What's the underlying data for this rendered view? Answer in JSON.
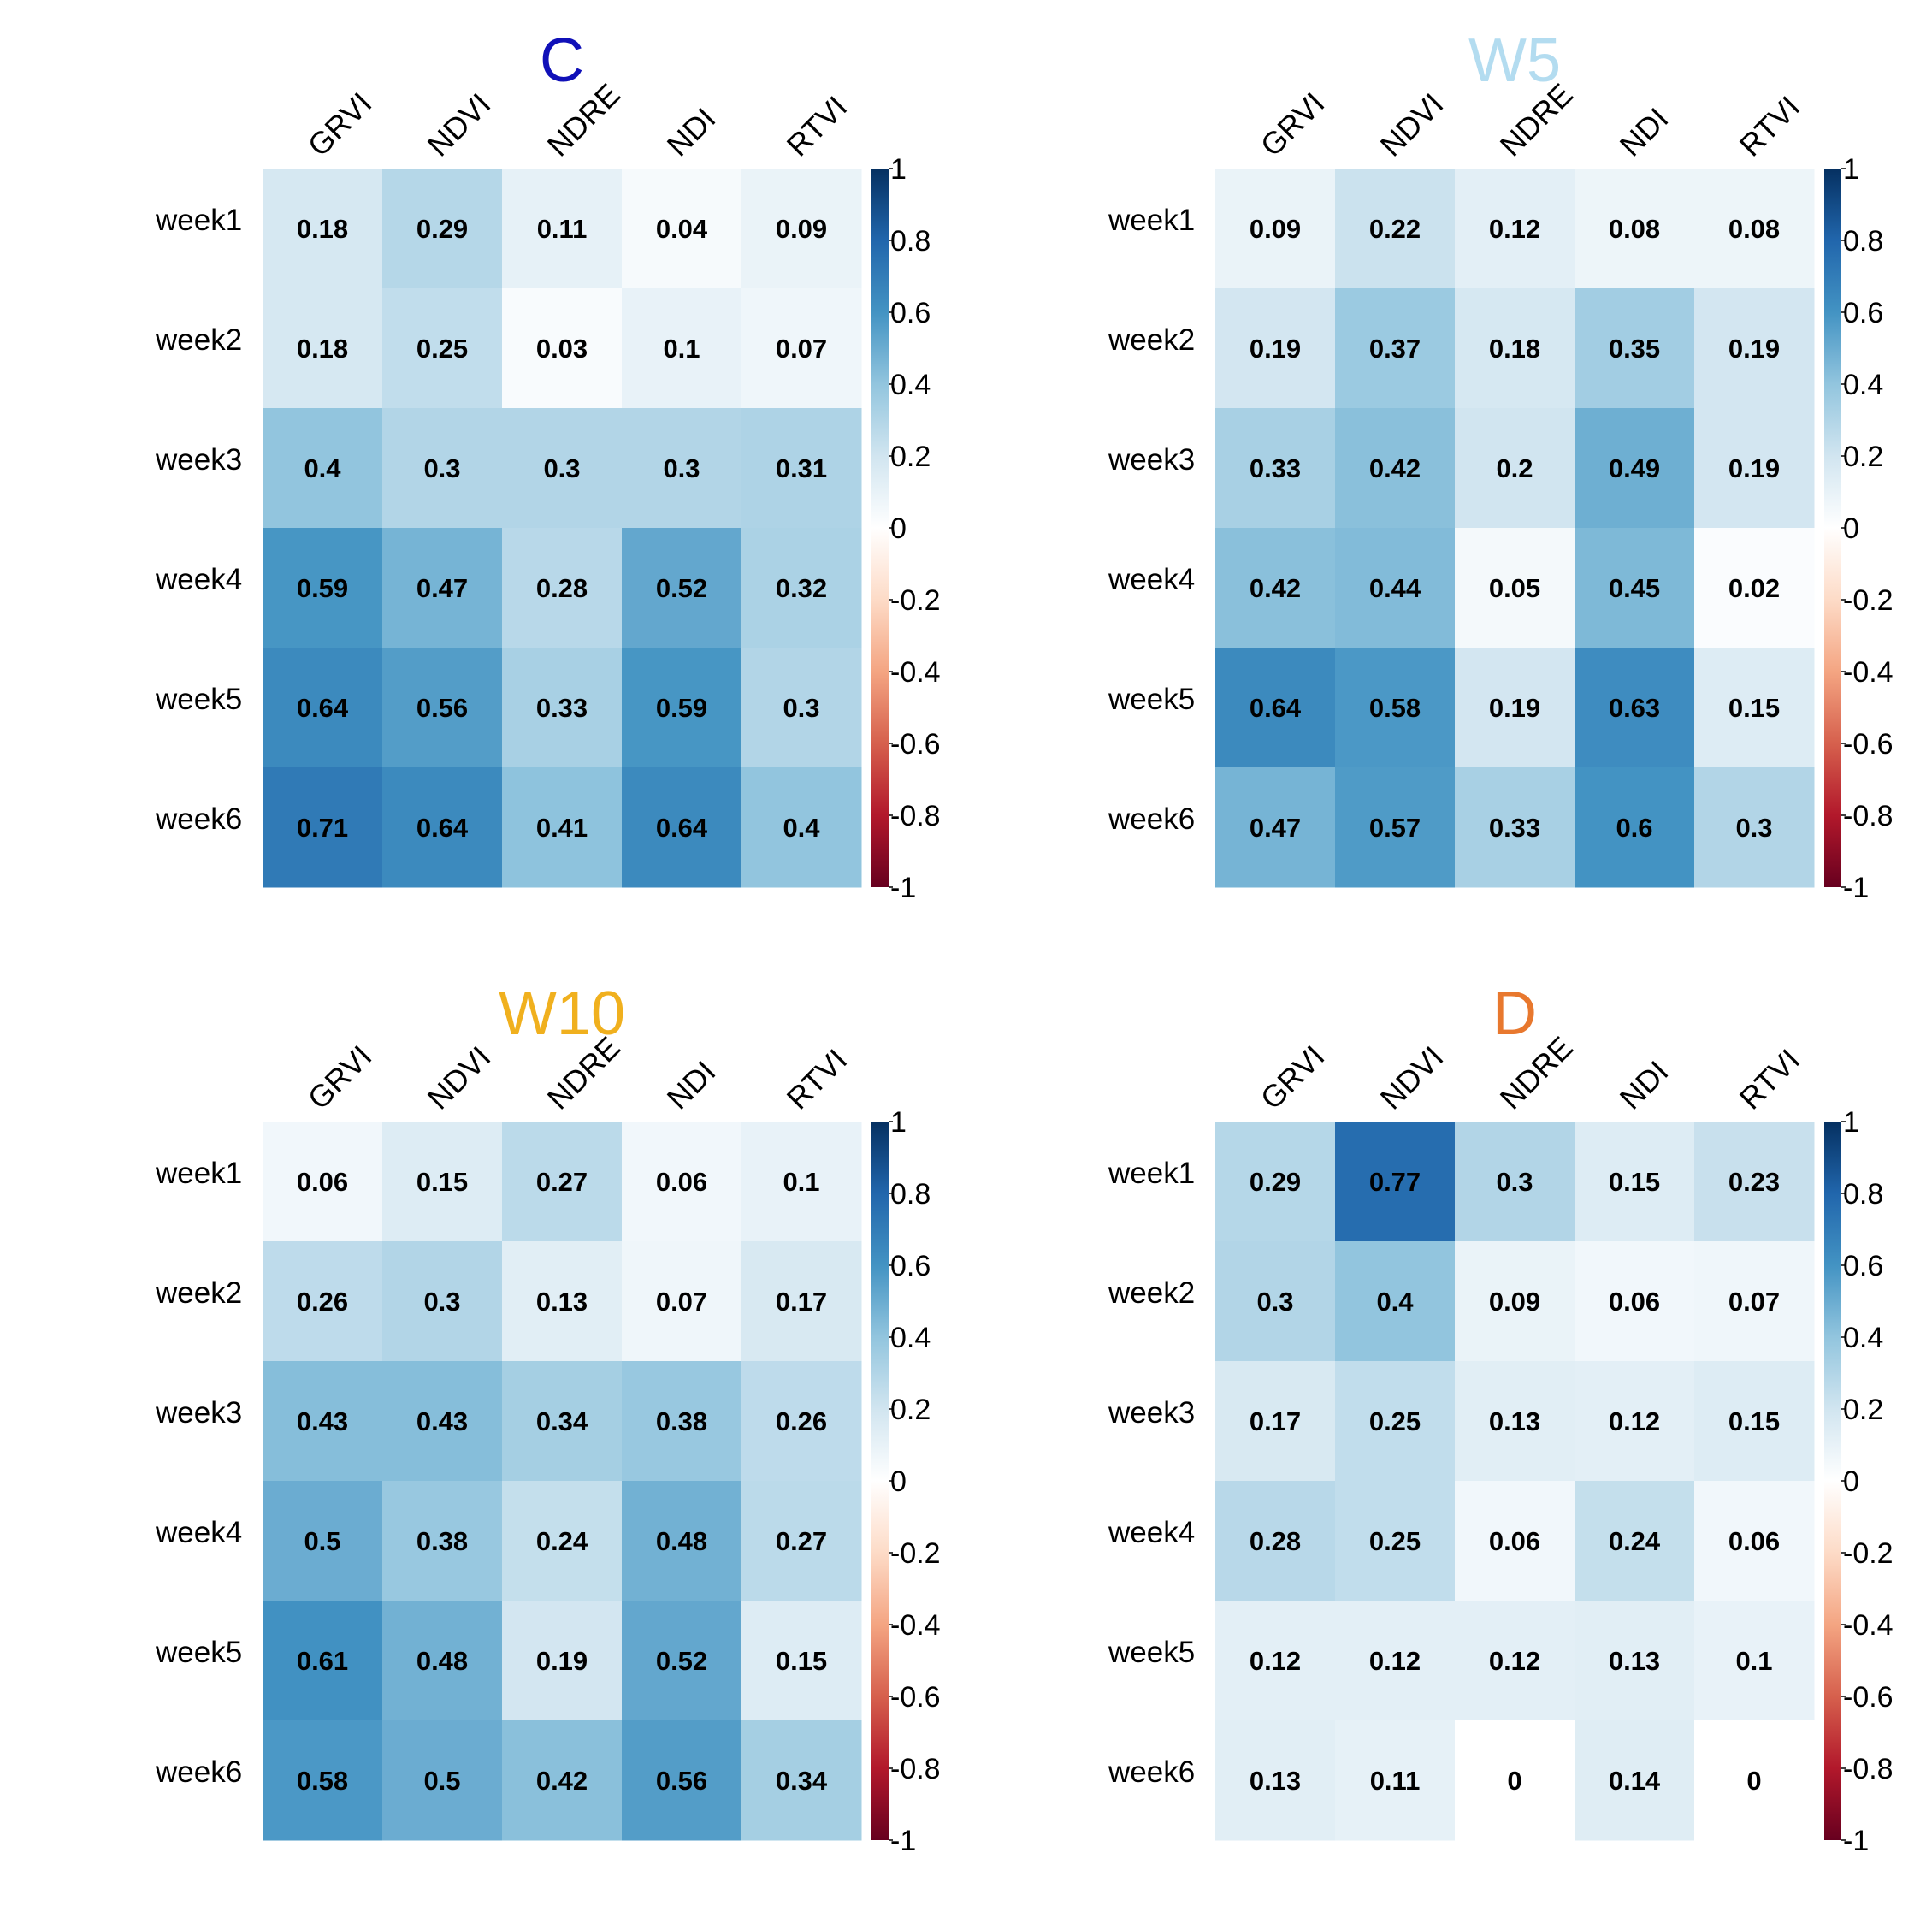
{
  "chart_data": [
    {
      "type": "heatmap",
      "title": "C",
      "title_color": "#1010b8",
      "columns": [
        "GRVI",
        "NDVI",
        "NDRE",
        "NDI",
        "RTVI"
      ],
      "rows": [
        "week1",
        "week2",
        "week3",
        "week4",
        "week5",
        "week6"
      ],
      "values": [
        [
          0.18,
          0.29,
          0.11,
          0.04,
          0.09
        ],
        [
          0.18,
          0.25,
          0.03,
          0.1,
          0.07
        ],
        [
          0.4,
          0.3,
          0.3,
          0.3,
          0.31
        ],
        [
          0.59,
          0.47,
          0.28,
          0.52,
          0.32
        ],
        [
          0.64,
          0.56,
          0.33,
          0.59,
          0.3
        ],
        [
          0.71,
          0.64,
          0.41,
          0.64,
          0.4
        ]
      ],
      "color_range": [
        -1,
        1
      ],
      "colorbar_ticks": [
        "1",
        "0.8",
        "0.6",
        "0.4",
        "0.2",
        "0",
        "-0.2",
        "-0.4",
        "-0.6",
        "-0.8",
        "-1"
      ]
    },
    {
      "type": "heatmap",
      "title": "W5",
      "title_color": "#b3dcf0",
      "columns": [
        "GRVI",
        "NDVI",
        "NDRE",
        "NDI",
        "RTVI"
      ],
      "rows": [
        "week1",
        "week2",
        "week3",
        "week4",
        "week5",
        "week6"
      ],
      "values": [
        [
          0.09,
          0.22,
          0.12,
          0.08,
          0.08
        ],
        [
          0.19,
          0.37,
          0.18,
          0.35,
          0.19
        ],
        [
          0.33,
          0.42,
          0.2,
          0.49,
          0.19
        ],
        [
          0.42,
          0.44,
          0.05,
          0.45,
          0.02
        ],
        [
          0.64,
          0.58,
          0.19,
          0.63,
          0.15
        ],
        [
          0.47,
          0.57,
          0.33,
          0.6,
          0.3
        ]
      ],
      "color_range": [
        -1,
        1
      ],
      "colorbar_ticks": [
        "1",
        "0.8",
        "0.6",
        "0.4",
        "0.2",
        "0",
        "-0.2",
        "-0.4",
        "-0.6",
        "-0.8",
        "-1"
      ]
    },
    {
      "type": "heatmap",
      "title": "W10",
      "title_color": "#f0b01e",
      "columns": [
        "GRVI",
        "NDVI",
        "NDRE",
        "NDI",
        "RTVI"
      ],
      "rows": [
        "week1",
        "week2",
        "week3",
        "week4",
        "week5",
        "week6"
      ],
      "values": [
        [
          0.06,
          0.15,
          0.27,
          0.06,
          0.1
        ],
        [
          0.26,
          0.3,
          0.13,
          0.07,
          0.17
        ],
        [
          0.43,
          0.43,
          0.34,
          0.38,
          0.26
        ],
        [
          0.5,
          0.38,
          0.24,
          0.48,
          0.27
        ],
        [
          0.61,
          0.48,
          0.19,
          0.52,
          0.15
        ],
        [
          0.58,
          0.5,
          0.42,
          0.56,
          0.34
        ]
      ],
      "color_range": [
        -1,
        1
      ],
      "colorbar_ticks": [
        "1",
        "0.8",
        "0.6",
        "0.4",
        "0.2",
        "0",
        "-0.2",
        "-0.4",
        "-0.6",
        "-0.8",
        "-1"
      ]
    },
    {
      "type": "heatmap",
      "title": "D",
      "title_color": "#e8782e",
      "columns": [
        "GRVI",
        "NDVI",
        "NDRE",
        "NDI",
        "RTVI"
      ],
      "rows": [
        "week1",
        "week2",
        "week3",
        "week4",
        "week5",
        "week6"
      ],
      "values": [
        [
          0.29,
          0.77,
          0.3,
          0.15,
          0.23
        ],
        [
          0.3,
          0.4,
          0.09,
          0.06,
          0.07
        ],
        [
          0.17,
          0.25,
          0.13,
          0.12,
          0.15
        ],
        [
          0.28,
          0.25,
          0.06,
          0.24,
          0.06
        ],
        [
          0.12,
          0.12,
          0.12,
          0.13,
          0.1
        ],
        [
          0.13,
          0.11,
          0,
          0.14,
          0
        ]
      ],
      "color_range": [
        -1,
        1
      ],
      "colorbar_ticks": [
        "1",
        "0.8",
        "0.6",
        "0.4",
        "0.2",
        "0",
        "-0.2",
        "-0.4",
        "-0.6",
        "-0.8",
        "-1"
      ]
    }
  ]
}
